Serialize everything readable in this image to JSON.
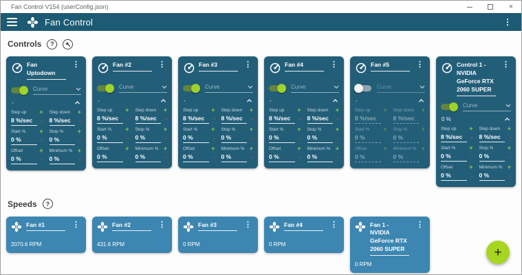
{
  "window": {
    "title": "Fan Control V154 (userConfig.json)"
  },
  "header": {
    "title": "Fan Control"
  },
  "sections": {
    "controls": "Controls",
    "speeds": "Speeds"
  },
  "labels": {
    "curve": "Curve",
    "step_up": "Step up",
    "step_down": "Step down",
    "start": "Start %",
    "stop": "Stop %",
    "offset": "Offset",
    "minimum": "Minimum %"
  },
  "icons": {
    "help": "?",
    "kebab": "⋮",
    "plus": "+",
    "minus": "-",
    "close": "×",
    "fab_plus": "+"
  },
  "controls": [
    {
      "name": "Fan Uptodown",
      "enabled": true,
      "value": "-",
      "step_up": "8 %/sec",
      "step_down": "8 %/sec",
      "start": "0 %",
      "stop": "0 %",
      "offset": "0 %",
      "minimum": "0 %"
    },
    {
      "name": "Fan #2",
      "enabled": true,
      "value": "-",
      "step_up": "8 %/sec",
      "step_down": "8 %/sec",
      "start": "0 %",
      "stop": "0 %",
      "offset": "0 %",
      "minimum": "0 %"
    },
    {
      "name": "Fan #3",
      "enabled": true,
      "value": "-",
      "step_up": "8 %/sec",
      "step_down": "8 %/sec",
      "start": "0 %",
      "stop": "0 %",
      "offset": "0 %",
      "minimum": "0 %"
    },
    {
      "name": "Fan #4",
      "enabled": true,
      "value": "-",
      "step_up": "8 %/sec",
      "step_down": "8 %/sec",
      "start": "0 %",
      "stop": "0 %",
      "offset": "0 %",
      "minimum": "0 %"
    },
    {
      "name": "Fan #5",
      "enabled": false,
      "value": "-",
      "step_up": "8 %/sec",
      "step_down": "8 %/sec",
      "start": "0 %",
      "stop": "0 %",
      "offset": "0 %",
      "minimum": "0 %"
    },
    {
      "name": "Control 1 - NVIDIA GeForce RTX 2060 SUPER",
      "enabled": true,
      "value": "0 %",
      "step_up": "8 %/sec",
      "step_down": "8 %/sec",
      "start": "0 %",
      "stop": "0 %",
      "offset": "0 %",
      "minimum": "0 %"
    }
  ],
  "speeds": [
    {
      "name": "Fan #1",
      "rpm": "2070.6 RPM"
    },
    {
      "name": "Fan #2",
      "rpm": "431.6 RPM"
    },
    {
      "name": "Fan #3",
      "rpm": "0 RPM"
    },
    {
      "name": "Fan #4",
      "rpm": "0 RPM"
    },
    {
      "name": "Fan 1 - NVIDIA GeForce RTX 2060 SUPER",
      "rpm": "0 RPM"
    }
  ],
  "colors": {
    "appbar": "#1d5a73",
    "control_card": "#235e78",
    "speed_card": "#3c86b1",
    "accent_lime": "#a6d620",
    "plus": "#9ccc40",
    "minus": "#a35252"
  }
}
